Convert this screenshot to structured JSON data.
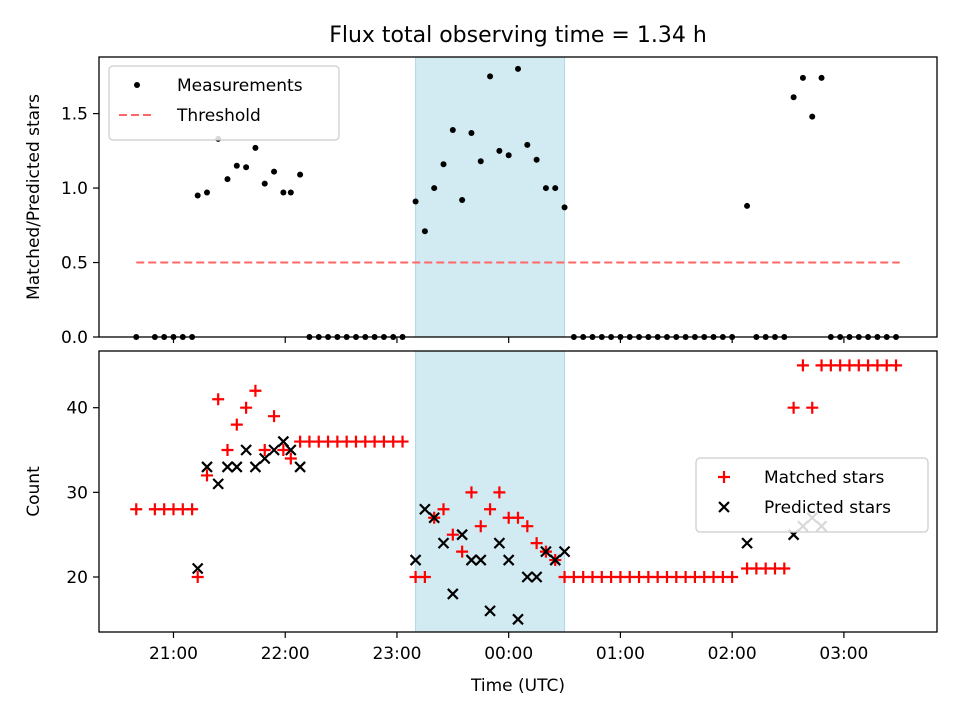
{
  "chart_data": [
    {
      "type": "scatter",
      "title": "Flux total observing time = 1.34 h",
      "xlabel": "",
      "ylabel": "Matched/Predicted stars",
      "xlim": [
        "20:20",
        "03:50"
      ],
      "ylim": [
        0,
        1.88
      ],
      "yticks": [
        0.0,
        0.5,
        1.0,
        1.5
      ],
      "ytick_labels": [
        "0.0",
        "0.5",
        "1.0",
        "1.5"
      ],
      "highlight_span": [
        "23:10",
        "00:30"
      ],
      "highlight_color": "#add8e6",
      "legend_position": "upper-left",
      "threshold": {
        "name": "Threshold",
        "y": 0.5,
        "x_range": [
          "20:40",
          "03:30"
        ],
        "color": "#ff6666",
        "style": "dashed"
      },
      "series": [
        {
          "name": "Measurements",
          "marker": "dot",
          "color": "#000000",
          "points": [
            [
              "20:40",
              0
            ],
            [
              "20:50",
              0
            ],
            [
              "20:55",
              0
            ],
            [
              "21:00",
              0
            ],
            [
              "21:05",
              0
            ],
            [
              "21:10",
              0
            ],
            [
              "21:13",
              0.95
            ],
            [
              "21:18",
              0.97
            ],
            [
              "21:24",
              1.33
            ],
            [
              "21:29",
              1.06
            ],
            [
              "21:34",
              1.15
            ],
            [
              "21:39",
              1.14
            ],
            [
              "21:44",
              1.27
            ],
            [
              "21:49",
              1.03
            ],
            [
              "21:54",
              1.11
            ],
            [
              "21:59",
              0.97
            ],
            [
              "22:03",
              0.97
            ],
            [
              "22:08",
              1.09
            ],
            [
              "22:13",
              0
            ],
            [
              "22:18",
              0
            ],
            [
              "22:23",
              0
            ],
            [
              "22:28",
              0
            ],
            [
              "22:33",
              0
            ],
            [
              "22:38",
              0
            ],
            [
              "22:43",
              0
            ],
            [
              "22:48",
              0
            ],
            [
              "22:53",
              0
            ],
            [
              "22:58",
              0
            ],
            [
              "23:03",
              0
            ],
            [
              "23:10",
              0.91
            ],
            [
              "23:15",
              0.71
            ],
            [
              "23:20",
              1.0
            ],
            [
              "23:25",
              1.16
            ],
            [
              "23:30",
              1.39
            ],
            [
              "23:35",
              0.92
            ],
            [
              "23:40",
              1.37
            ],
            [
              "23:45",
              1.18
            ],
            [
              "23:50",
              1.75
            ],
            [
              "23:55",
              1.25
            ],
            [
              "00:00",
              1.22
            ],
            [
              "00:05",
              1.8
            ],
            [
              "00:10",
              1.29
            ],
            [
              "00:15",
              1.19
            ],
            [
              "00:20",
              1.0
            ],
            [
              "00:25",
              1.0
            ],
            [
              "00:30",
              0.87
            ],
            [
              "00:35",
              0
            ],
            [
              "00:40",
              0
            ],
            [
              "00:45",
              0
            ],
            [
              "00:50",
              0
            ],
            [
              "00:55",
              0
            ],
            [
              "01:00",
              0
            ],
            [
              "01:05",
              0
            ],
            [
              "01:10",
              0
            ],
            [
              "01:15",
              0
            ],
            [
              "01:20",
              0
            ],
            [
              "01:25",
              0
            ],
            [
              "01:30",
              0
            ],
            [
              "01:35",
              0
            ],
            [
              "01:40",
              0
            ],
            [
              "01:45",
              0
            ],
            [
              "01:50",
              0
            ],
            [
              "01:55",
              0
            ],
            [
              "02:00",
              0
            ],
            [
              "02:08",
              0.88
            ],
            [
              "02:13",
              0
            ],
            [
              "02:18",
              0
            ],
            [
              "02:23",
              0
            ],
            [
              "02:28",
              0
            ],
            [
              "02:33",
              1.61
            ],
            [
              "02:38",
              1.74
            ],
            [
              "02:43",
              1.48
            ],
            [
              "02:48",
              1.74
            ],
            [
              "02:53",
              0
            ],
            [
              "02:58",
              0
            ],
            [
              "03:03",
              0
            ],
            [
              "03:08",
              0
            ],
            [
              "03:13",
              0
            ],
            [
              "03:18",
              0
            ],
            [
              "03:23",
              0
            ],
            [
              "03:28",
              0
            ]
          ]
        }
      ]
    },
    {
      "type": "scatter",
      "title": "",
      "xlabel": "Time (UTC)",
      "ylabel": "Count",
      "xlim": [
        "20:20",
        "03:50"
      ],
      "ylim": [
        13.5,
        46.7
      ],
      "yticks": [
        20,
        30,
        40
      ],
      "ytick_labels": [
        "20",
        "30",
        "40"
      ],
      "xticks": [
        "21:00",
        "22:00",
        "23:00",
        "00:00",
        "01:00",
        "02:00",
        "03:00"
      ],
      "xtick_labels": [
        "21:00",
        "22:00",
        "23:00",
        "00:00",
        "01:00",
        "02:00",
        "03:00"
      ],
      "highlight_span": [
        "23:10",
        "00:30"
      ],
      "highlight_color": "#add8e6",
      "legend_position": "center-right",
      "series": [
        {
          "name": "Matched stars",
          "marker": "plus",
          "color": "#ff0000",
          "points": [
            [
              "20:40",
              28
            ],
            [
              "20:50",
              28
            ],
            [
              "20:55",
              28
            ],
            [
              "21:00",
              28
            ],
            [
              "21:05",
              28
            ],
            [
              "21:10",
              28
            ],
            [
              "21:13",
              20
            ],
            [
              "21:18",
              32
            ],
            [
              "21:24",
              41
            ],
            [
              "21:29",
              35
            ],
            [
              "21:34",
              38
            ],
            [
              "21:39",
              40
            ],
            [
              "21:44",
              42
            ],
            [
              "21:49",
              35
            ],
            [
              "21:54",
              39
            ],
            [
              "21:59",
              35
            ],
            [
              "22:03",
              34
            ],
            [
              "22:08",
              36
            ],
            [
              "22:13",
              36
            ],
            [
              "22:18",
              36
            ],
            [
              "22:23",
              36
            ],
            [
              "22:28",
              36
            ],
            [
              "22:33",
              36
            ],
            [
              "22:38",
              36
            ],
            [
              "22:43",
              36
            ],
            [
              "22:48",
              36
            ],
            [
              "22:53",
              36
            ],
            [
              "22:58",
              36
            ],
            [
              "23:03",
              36
            ],
            [
              "23:10",
              20
            ],
            [
              "23:15",
              20
            ],
            [
              "23:20",
              27
            ],
            [
              "23:25",
              28
            ],
            [
              "23:30",
              25
            ],
            [
              "23:35",
              23
            ],
            [
              "23:40",
              30
            ],
            [
              "23:45",
              26
            ],
            [
              "23:50",
              28
            ],
            [
              "23:55",
              30
            ],
            [
              "00:00",
              27
            ],
            [
              "00:05",
              27
            ],
            [
              "00:10",
              26
            ],
            [
              "00:15",
              24
            ],
            [
              "00:20",
              23
            ],
            [
              "00:25",
              22
            ],
            [
              "00:30",
              20
            ],
            [
              "00:35",
              20
            ],
            [
              "00:40",
              20
            ],
            [
              "00:45",
              20
            ],
            [
              "00:50",
              20
            ],
            [
              "00:55",
              20
            ],
            [
              "01:00",
              20
            ],
            [
              "01:05",
              20
            ],
            [
              "01:10",
              20
            ],
            [
              "01:15",
              20
            ],
            [
              "01:20",
              20
            ],
            [
              "01:25",
              20
            ],
            [
              "01:30",
              20
            ],
            [
              "01:35",
              20
            ],
            [
              "01:40",
              20
            ],
            [
              "01:45",
              20
            ],
            [
              "01:50",
              20
            ],
            [
              "01:55",
              20
            ],
            [
              "02:00",
              20
            ],
            [
              "02:08",
              21
            ],
            [
              "02:13",
              21
            ],
            [
              "02:18",
              21
            ],
            [
              "02:23",
              21
            ],
            [
              "02:28",
              21
            ],
            [
              "02:33",
              40
            ],
            [
              "02:38",
              45
            ],
            [
              "02:43",
              40
            ],
            [
              "02:48",
              45
            ],
            [
              "02:53",
              45
            ],
            [
              "02:58",
              45
            ],
            [
              "03:03",
              45
            ],
            [
              "03:08",
              45
            ],
            [
              "03:13",
              45
            ],
            [
              "03:18",
              45
            ],
            [
              "03:23",
              45
            ],
            [
              "03:28",
              45
            ]
          ]
        },
        {
          "name": "Predicted stars",
          "marker": "x",
          "color": "#000000",
          "points": [
            [
              "21:13",
              21
            ],
            [
              "21:18",
              33
            ],
            [
              "21:24",
              31
            ],
            [
              "21:29",
              33
            ],
            [
              "21:34",
              33
            ],
            [
              "21:39",
              35
            ],
            [
              "21:44",
              33
            ],
            [
              "21:49",
              34
            ],
            [
              "21:54",
              35
            ],
            [
              "21:59",
              36
            ],
            [
              "22:03",
              35
            ],
            [
              "22:08",
              33
            ],
            [
              "23:10",
              22
            ],
            [
              "23:15",
              28
            ],
            [
              "23:20",
              27
            ],
            [
              "23:25",
              24
            ],
            [
              "23:30",
              18
            ],
            [
              "23:35",
              25
            ],
            [
              "23:40",
              22
            ],
            [
              "23:45",
              22
            ],
            [
              "23:50",
              16
            ],
            [
              "23:55",
              24
            ],
            [
              "00:00",
              22
            ],
            [
              "00:05",
              15
            ],
            [
              "00:10",
              20
            ],
            [
              "00:15",
              20
            ],
            [
              "00:20",
              23
            ],
            [
              "00:25",
              22
            ],
            [
              "00:30",
              23
            ],
            [
              "02:08",
              24
            ],
            [
              "02:33",
              25
            ],
            [
              "02:38",
              26
            ],
            [
              "02:43",
              27
            ],
            [
              "02:48",
              26
            ]
          ]
        }
      ]
    }
  ]
}
